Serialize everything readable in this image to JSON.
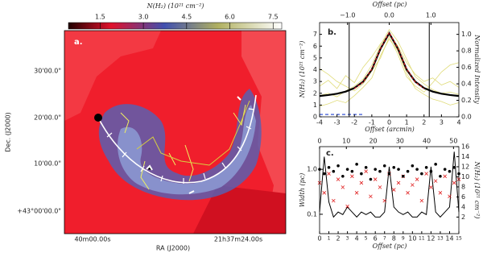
{
  "chart_data": [
    {
      "type": "map",
      "colorbar_label": "N(H₂) (10²¹ cm⁻²)",
      "clim": [
        0.4,
        7.8
      ],
      "cticks": [
        1.5,
        {
          "value": 3,
          "label": "3.0"
        },
        4.5,
        {
          "value": 6,
          "label": "6.0"
        },
        7.5
      ],
      "panel_label": "a.",
      "ylabel": "Dec. (J2000)",
      "xlabel": "RA (J2000)",
      "ytick_labels": [
        "30'00.0\"",
        "20'00.0\"",
        "10'00.0\"",
        "+43°00'00.0\""
      ],
      "xtick_labels": [
        "40m00.00s",
        "21h37m24.00s"
      ]
    },
    {
      "type": "line",
      "panel_label": "b.",
      "xlabel": "Offset (arcmin)",
      "x2label": "Offset (pc)",
      "ylabel": "N(H₂) (10²¹ cm⁻²)",
      "y2label": "Normalized Intensity",
      "x": [
        -4,
        -3.5,
        -3,
        -2.5,
        -2,
        -1.5,
        -1,
        -0.5,
        0,
        0.5,
        1,
        1.5,
        2,
        2.5,
        3,
        3.5,
        4
      ],
      "xlim": [
        -4,
        4
      ],
      "xticks": [
        -4,
        -3,
        -2,
        -1,
        0,
        1,
        2,
        3,
        4
      ],
      "x2lim": [
        -1.67,
        1.67
      ],
      "x2ticks": [
        {
          "value": -1,
          "label": "−1.0"
        },
        {
          "value": 0,
          "label": "0.0"
        },
        {
          "value": 1,
          "label": "1.0"
        }
      ],
      "ylim": [
        0,
        8
      ],
      "yticks": [
        0,
        1,
        2,
        3,
        4,
        5,
        6,
        7
      ],
      "y2lim": [
        0,
        1.143
      ],
      "y2ticks": [
        {
          "value": 0,
          "label": "0.0"
        },
        0.2,
        0.4,
        0.6,
        0.8,
        {
          "value": 1,
          "label": "1.0"
        }
      ],
      "vlines": [
        -2.3,
        2.3
      ],
      "series": [
        {
          "color": "#e0dc7a",
          "values": [
            2.6,
            3.1,
            2.4,
            3.5,
            2.9,
            4.2,
            5.1,
            6.2,
            7.0,
            6.0,
            4.6,
            3.6,
            3.0,
            3.3,
            2.7,
            3.0,
            2.5
          ]
        },
        {
          "color": "#e0dc7a",
          "values": [
            0.9,
            1.1,
            1.4,
            1.2,
            1.8,
            2.5,
            3.3,
            5.2,
            6.6,
            5.6,
            3.7,
            2.4,
            1.9,
            1.5,
            1.3,
            1.0,
            1.2
          ]
        },
        {
          "color": "#e0dc7a",
          "values": [
            1.8,
            2.0,
            1.7,
            2.2,
            2.6,
            3.2,
            4.4,
            6.1,
            7.4,
            6.4,
            4.9,
            3.4,
            2.8,
            2.3,
            2.0,
            2.1,
            1.9
          ]
        },
        {
          "color": "#e0dc7a",
          "values": [
            4.1,
            3.6,
            3.0,
            2.6,
            2.2,
            2.8,
            3.9,
            5.0,
            6.8,
            5.3,
            3.4,
            2.6,
            2.1,
            2.9,
            3.8,
            4.4,
            4.6
          ]
        },
        {
          "color": "#000000",
          "width": 2.2,
          "values": [
            1.77,
            1.85,
            1.96,
            2.14,
            2.44,
            2.98,
            4.01,
            5.78,
            7.1,
            5.78,
            4.01,
            2.98,
            2.44,
            2.14,
            1.96,
            1.85,
            1.77
          ]
        },
        {
          "color": "#d62020",
          "width": 1.2,
          "dash": "3,2",
          "values": [
            null,
            null,
            null,
            null,
            2.4,
            2.95,
            4.05,
            5.8,
            7.15,
            5.8,
            4.05,
            2.95,
            2.4,
            null,
            null,
            null,
            null
          ]
        },
        {
          "color": "#2040d0",
          "width": 1.2,
          "dash": "4,3",
          "values": [
            0.2,
            0.2,
            0.2,
            0.2,
            0.2,
            0.2,
            null,
            null,
            null,
            null,
            null,
            null,
            null,
            null,
            null,
            null,
            null
          ]
        }
      ]
    },
    {
      "type": "scatter",
      "panel_label": "c.",
      "xlabel": "Offset (pc)",
      "ylabel": "Width (pc)",
      "y2label": "N(H₂) (10²¹ cm⁻²)",
      "xlim": [
        0,
        15
      ],
      "xticks": [
        0,
        1,
        2,
        3,
        4,
        5,
        6,
        7,
        8,
        9,
        10,
        11,
        12,
        13,
        14,
        15
      ],
      "x2lim": [
        0,
        52
      ],
      "x2ticks": [
        0,
        10,
        20,
        30,
        40,
        50
      ],
      "ylim": [
        0.037,
        3.2
      ],
      "log": true,
      "yticks": [
        0.1,
        {
          "value": 1,
          "label": "1.0"
        }
      ],
      "y2lim": [
        -1.3,
        16
      ],
      "y2ticks": [
        2,
        4,
        6,
        8,
        10,
        12,
        14,
        16
      ],
      "x": [
        0,
        0.5,
        1,
        1.5,
        2,
        2.5,
        3,
        3.5,
        4,
        4.5,
        5,
        5.5,
        6,
        6.5,
        7,
        7.5,
        8,
        8.5,
        9,
        9.5,
        10,
        10.5,
        11,
        11.5,
        12,
        12.5,
        13,
        13.5,
        14,
        14.5,
        15
      ],
      "series": [
        {
          "marker": "line",
          "axis": "y2",
          "color": "#000000",
          "values": [
            3,
            14,
            5,
            2,
            3,
            2.5,
            4,
            3,
            2,
            3,
            2.5,
            3,
            2,
            2,
            3,
            12,
            4,
            3,
            2.5,
            3,
            2,
            2,
            3,
            2.5,
            12,
            3,
            2,
            3,
            4,
            15,
            3
          ]
        },
        {
          "marker": "cross",
          "color": "#e02020",
          "values": [
            0.5,
            0.3,
            0.8,
            0.2,
            0.6,
            0.4,
            0.15,
            0.7,
            0.3,
            0.5,
            0.9,
            0.25,
            0.6,
            0.4,
            0.2,
            0.8,
            0.35,
            0.5,
            0.7,
            0.3,
            0.45,
            0.6,
            0.2,
            0.8,
            0.4,
            0.55,
            0.3,
            0.7,
            0.25,
            0.5,
            0.6
          ]
        },
        {
          "marker": "dot",
          "color": "#000000",
          "values": [
            1.0,
            0.8,
            1.1,
            0.9,
            1.2,
            0.7,
            1.0,
            0.9,
            1.3,
            0.8,
            1.1,
            0.6,
            1.0,
            0.9,
            1.2,
            0.8,
            1.1,
            1.0,
            0.7,
            0.9,
            1.2,
            1.0,
            0.8,
            1.1,
            0.9,
            1.3,
            0.7,
            1.0,
            0.9,
            1.1,
            0.8
          ]
        }
      ]
    }
  ]
}
